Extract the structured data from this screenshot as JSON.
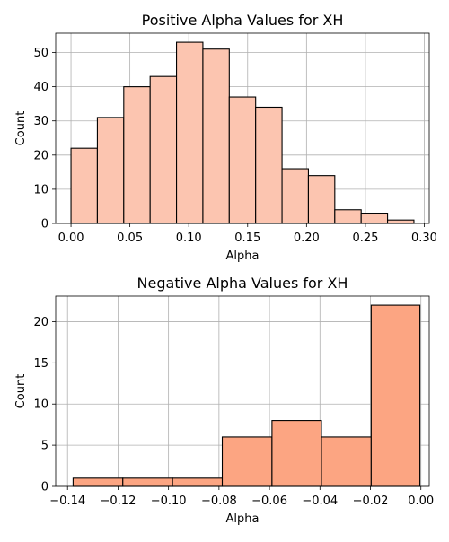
{
  "chart_data": [
    {
      "type": "bar",
      "title": "Positive Alpha Values for XH",
      "xlabel": "Alpha",
      "ylabel": "Count",
      "bin_edges": [
        0.0,
        0.0224,
        0.0448,
        0.0672,
        0.0896,
        0.112,
        0.1344,
        0.1568,
        0.1792,
        0.2016,
        0.224,
        0.2464,
        0.2688,
        0.2912
      ],
      "values": [
        22,
        31,
        40,
        43,
        53,
        51,
        37,
        34,
        16,
        14,
        4,
        3,
        1
      ],
      "xlim": [
        -0.013,
        0.3042
      ],
      "ylim": [
        0,
        55.65
      ],
      "xticks": [
        0.0,
        0.05,
        0.1,
        0.15,
        0.2,
        0.25,
        0.3
      ],
      "xtick_labels": [
        "0.00",
        "0.05",
        "0.10",
        "0.15",
        "0.20",
        "0.25",
        "0.30"
      ],
      "yticks": [
        0,
        10,
        20,
        30,
        40,
        50
      ],
      "ytick_labels": [
        "0",
        "10",
        "20",
        "30",
        "40",
        "50"
      ],
      "grid": true,
      "bar_color": "#fcc5b0",
      "edge_color": "#000000"
    },
    {
      "type": "bar",
      "title": "Negative Alpha Values for XH",
      "xlabel": "Alpha",
      "ylabel": "Count",
      "bin_edges": [
        -0.1378,
        -0.1181,
        -0.0984,
        -0.0787,
        -0.059,
        -0.0394,
        -0.0197,
        -0.0004
      ],
      "values": [
        1,
        1,
        1,
        6,
        8,
        6,
        22
      ],
      "xlim": [
        -0.1447,
        0.0033
      ],
      "ylim": [
        0,
        23.1
      ],
      "xticks": [
        -0.14,
        -0.12,
        -0.1,
        -0.08,
        -0.06,
        -0.04,
        -0.02,
        0.0
      ],
      "xtick_labels": [
        "−0.14",
        "−0.12",
        "−0.10",
        "−0.08",
        "−0.06",
        "−0.04",
        "−0.02",
        "0.00"
      ],
      "yticks": [
        0,
        5,
        10,
        15,
        20
      ],
      "ytick_labels": [
        "0",
        "5",
        "10",
        "15",
        "20"
      ],
      "grid": true,
      "bar_color": "#fca582",
      "edge_color": "#000000"
    }
  ]
}
